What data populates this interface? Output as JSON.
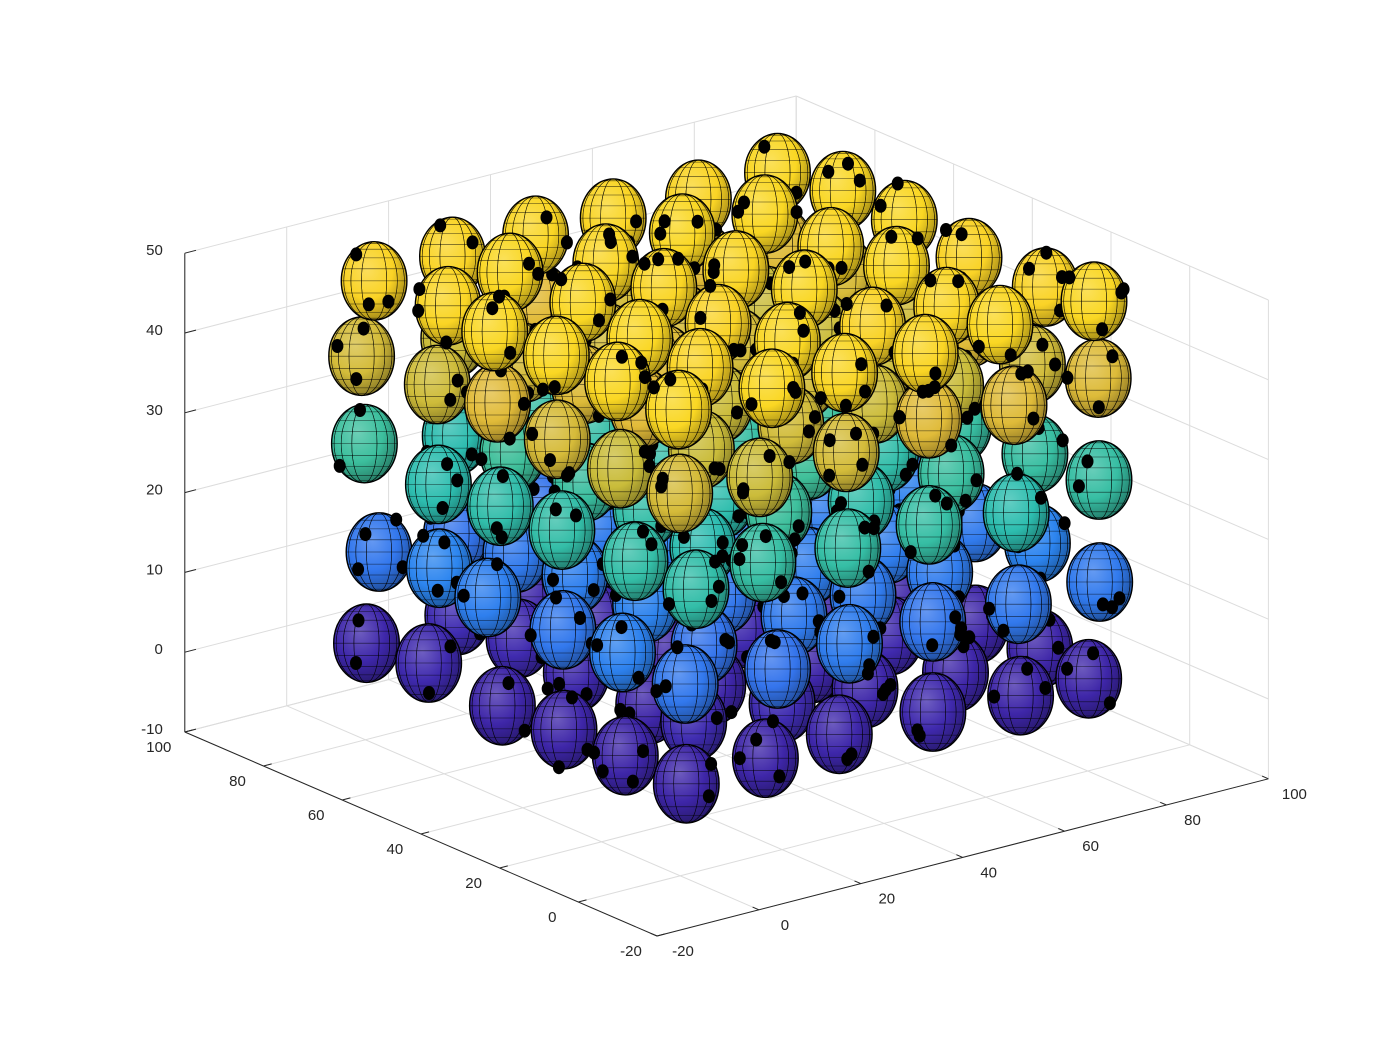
{
  "chart_data": {
    "type": "scatter3d",
    "title": "",
    "xlabel": "",
    "ylabel": "",
    "zlabel": "",
    "xlim": [
      -20,
      100
    ],
    "ylim": [
      -20,
      100
    ],
    "zlim": [
      -10,
      50
    ],
    "x_ticks": [
      "-20",
      "0",
      "20",
      "40",
      "60",
      "80",
      "100"
    ],
    "y_ticks": [
      "-20",
      "0",
      "20",
      "40",
      "60",
      "80",
      "100"
    ],
    "z_ticks": [
      "-10",
      "0",
      "10",
      "20",
      "30",
      "40",
      "50"
    ],
    "grid": true,
    "box": false,
    "colormap": "parula",
    "color_by": "z",
    "marker_color": "#000000",
    "sphere_edge_color": "#000000",
    "sphere_radius": 8,
    "lattice": {
      "spacing": 16,
      "x": [
        6,
        22,
        38,
        54,
        70,
        86
      ],
      "y": [
        6,
        22,
        38,
        54,
        70,
        86
      ],
      "z": [
        0,
        12,
        24,
        36,
        46
      ]
    }
  }
}
